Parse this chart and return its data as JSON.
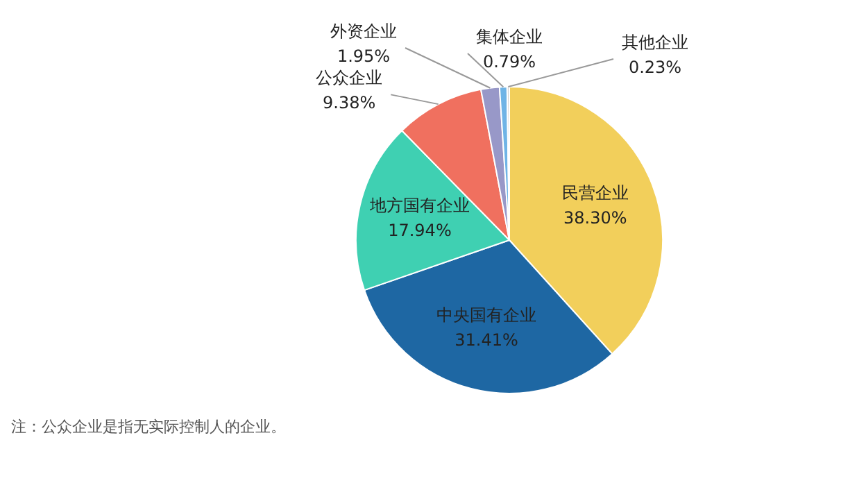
{
  "chart_data": {
    "type": "pie",
    "categories": [
      "民营企业",
      "中央国有企业",
      "地方国有企业",
      "公众企业",
      "外资企业",
      "集体企业",
      "其他企业"
    ],
    "values": [
      38.3,
      31.41,
      17.94,
      9.38,
      1.95,
      0.79,
      0.23
    ],
    "value_labels": [
      "38.30%",
      "31.41%",
      "17.94%",
      "9.38%",
      "1.95%",
      "0.79%",
      "0.23%"
    ],
    "colors": [
      "#f2cf5b",
      "#1e67a3",
      "#3fd0b2",
      "#f0705f",
      "#9898c8",
      "#6fb4e6",
      "#cfcfcf"
    ],
    "legend": false,
    "annotations": [
      "注：公众企业是指无实际控制人的企业。"
    ]
  }
}
